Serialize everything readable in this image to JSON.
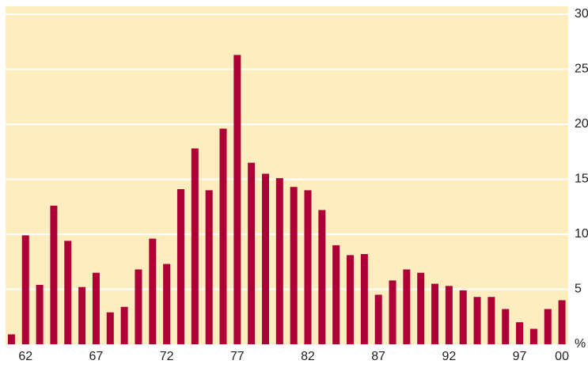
{
  "chart_data": {
    "type": "bar",
    "categories": [
      null,
      "62",
      null,
      null,
      null,
      null,
      "67",
      null,
      null,
      null,
      null,
      "72",
      null,
      null,
      null,
      null,
      "77",
      null,
      null,
      null,
      null,
      "82",
      null,
      null,
      null,
      null,
      "87",
      null,
      null,
      null,
      null,
      "92",
      null,
      null,
      null,
      null,
      "97",
      null,
      null,
      "00"
    ],
    "values": [
      0.9,
      9.9,
      5.4,
      12.6,
      9.4,
      5.2,
      6.5,
      2.9,
      3.4,
      6.8,
      9.6,
      7.3,
      14.1,
      17.8,
      14.0,
      19.6,
      26.3,
      16.5,
      15.5,
      15.1,
      14.3,
      14.0,
      12.2,
      9.0,
      8.1,
      8.2,
      4.5,
      5.8,
      6.8,
      6.5,
      5.5,
      5.3,
      4.9,
      4.3,
      4.3,
      3.2,
      2.0,
      1.4,
      3.2,
      4.0
    ],
    "color": "#ae0036",
    "ylim": [
      0,
      30
    ],
    "yticks": [
      {
        "value": 0,
        "label": "%"
      },
      5,
      10,
      15,
      20,
      25,
      30
    ],
    "grid": true
  }
}
